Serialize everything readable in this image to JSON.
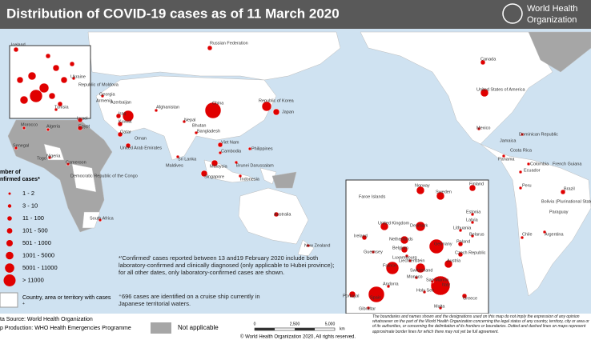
{
  "header": {
    "title": "Distribution of COVID-19 cases as of 11 March 2020",
    "org_line1": "World Health",
    "org_line2": "Organization"
  },
  "legend": {
    "title_line1": "mber of",
    "title_line2": "nfirmed cases*",
    "items": [
      "1 - 2",
      "3 - 10",
      "11 - 100",
      "101 - 500",
      "501 - 1000",
      "1001 - 5000",
      "5001 - 11000",
      "> 11000"
    ],
    "country_with_cases": "Country, area or territory with cases",
    "sup": "+",
    "not_applicable": "Not applicable"
  },
  "notes": {
    "confirmed": "*'Confirmed' cases reported between 13 and19 February 2020 include both laboratory-confirmed and clinically diagnosed (only applicable to Hubei province); for all other dates, only laboratory-confirmed cases are shown.",
    "cruise_ship": "⁺696 cases are identified on a cruise ship currently in Japanese territorial waters."
  },
  "footer": {
    "data_source": "ta Source: World Health Organization",
    "map_production": "p Production: WHO Health Emergencies Programme",
    "scale": [
      "0",
      "2,500",
      "5,000"
    ],
    "scale_unit": "km",
    "copyright": "© World Health Organization 2020, All rights reserved.",
    "disclaimer": "The boundaries and names shown and the designations used on this map do not imply the expression of any opinion whatsoever on the part of the World Health Organization concerning the legal status of any country, territory, city or area or of its authorities, or concerning the delimitation of its frontiers or boundaries. Dotted and dashed lines on maps represent approximate border lines for which there may not yet be full agreement."
  },
  "map": {
    "labels": [
      "Russian Federation",
      "China",
      "Republic of Korea",
      "Japan",
      "Nepal",
      "Bhutan",
      "Bangladesh",
      "Sri Lanka",
      "Maldives",
      "Viet Nam",
      "Cambodia",
      "Philippines",
      "Malaysia",
      "Singapore",
      "Brunei Darussalam",
      "Indonesia",
      "Australia",
      "New Zealand",
      "Canada",
      "United States of America",
      "Mexico",
      "Dominican Republic",
      "Jamaica",
      "Costa Rica",
      "Panama",
      "Colombia",
      "French Guiana",
      "Ecuador",
      "Peru",
      "Bolivia (Plurinational State of)",
      "Brazil",
      "Paraguay",
      "Chile",
      "Argentina",
      "Iceland",
      "Ukraine",
      "Republic of Moldova",
      "Georgia",
      "Armenia",
      "Azerbaijan",
      "Afghanistan",
      "Iraq",
      "Kuwait",
      "Egypt",
      "Israel",
      "Qatar",
      "Oman",
      "United Arab Emirates",
      "Morocco",
      "Algeria",
      "Tunisia",
      "Nigeria",
      "Cameroon",
      "Senegal",
      "Togo",
      "Democratic Republic of the Congo",
      "South Africa",
      "Faroe Islands",
      "Norway",
      "Sweden",
      "Finland",
      "Estonia",
      "Latvia",
      "Lithuania",
      "Belarus",
      "Denmark",
      "United Kingdom",
      "Ireland",
      "Netherlands",
      "Belgium",
      "Luxembourg",
      "Germany",
      "Poland",
      "France",
      "Switzerland",
      "Austria",
      "Liechtenstein",
      "Czech Republic",
      "Italy",
      "Spain",
      "Portugal",
      "Andorra",
      "Monaco",
      "Holy See",
      "San Marino",
      "Greece",
      "Gibraltar",
      "Malta",
      "Guernsey"
    ]
  }
}
